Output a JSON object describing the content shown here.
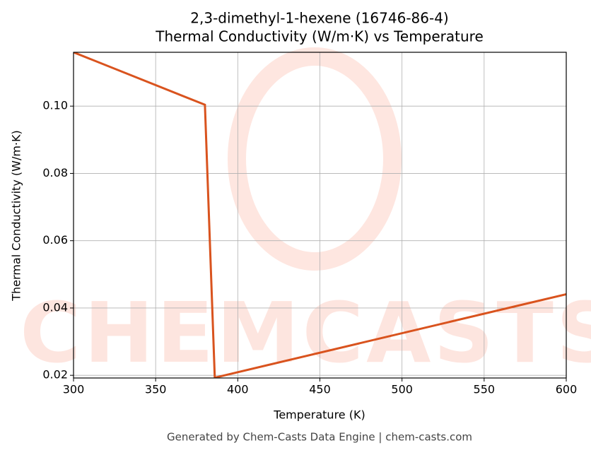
{
  "chart_data": {
    "type": "line",
    "title": [
      "2,3-dimethyl-1-hexene (16746-86-4)",
      "Thermal Conductivity (W/m·K) vs Temperature"
    ],
    "x_label": "Temperature (K)",
    "y_label": "Thermal Conductivity (W/m·K)",
    "x": [
      300,
      380,
      386,
      600
    ],
    "series": [
      {
        "name": "Thermal Conductivity",
        "color": "#d9531e",
        "values": [
          0.116,
          0.1004,
          0.0193,
          0.0441
        ]
      }
    ],
    "xlim": [
      300,
      600
    ],
    "xticks": [
      300,
      350,
      400,
      450,
      500,
      550,
      600
    ],
    "ylim": [
      0.0192,
      0.116
    ],
    "yticks": [
      {
        "value": 0.02,
        "label": "0.02"
      },
      {
        "value": 0.04,
        "label": "0.04"
      },
      {
        "value": 0.06,
        "label": "0.06"
      },
      {
        "value": 0.08,
        "label": "0.08"
      },
      {
        "value": 0.1,
        "label": "0.10"
      }
    ],
    "grid": true,
    "footer": "Generated by Chem-Casts Data Engine | chem-casts.com"
  }
}
